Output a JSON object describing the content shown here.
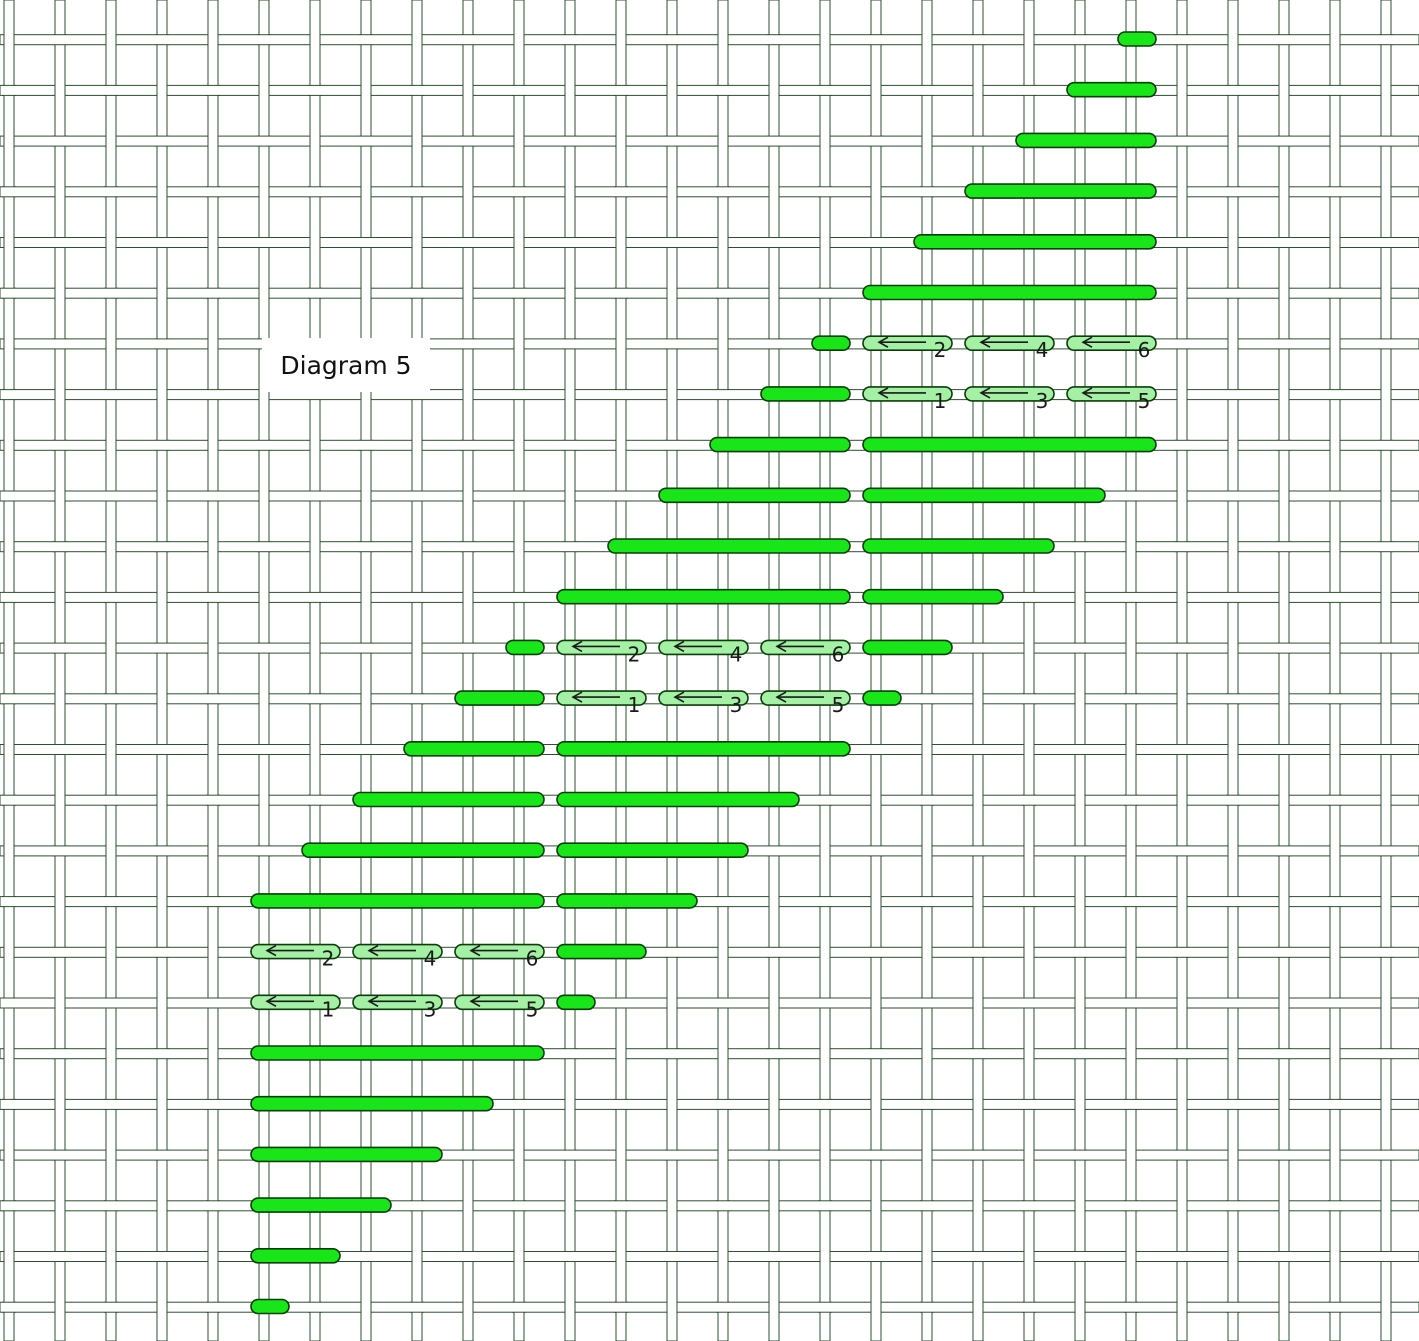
{
  "title": "Diagram 5",
  "colors": {
    "background": "#ffffff",
    "canvas_thread_fill": "#ffffff",
    "canvas_thread_outline": "#2f4f2f",
    "stitch_fill": "#19e619",
    "stitch_outline": "#0b3d0b",
    "numbered_stitch_fill": "#a4f0a4",
    "label_color": "#1a1a1a"
  },
  "grid": {
    "columns": 28,
    "rows": 26,
    "col_start": 14,
    "col_end": 41
  },
  "stitches": [
    {
      "row": 0,
      "from": 35,
      "to": 36
    },
    {
      "row": 1,
      "from": 34,
      "to": 36
    },
    {
      "row": 2,
      "from": 33,
      "to": 36
    },
    {
      "row": 3,
      "from": 32,
      "to": 36
    },
    {
      "row": 4,
      "from": 31,
      "to": 36
    },
    {
      "row": 5,
      "from": 30,
      "to": 36
    },
    {
      "row": 6,
      "from": 29,
      "to": 30
    },
    {
      "row": 7,
      "from": 28,
      "to": 30
    },
    {
      "row": 8,
      "from": 27,
      "to": 30
    },
    {
      "row": 8,
      "from": 30,
      "to": 36
    },
    {
      "row": 9,
      "from": 26,
      "to": 30
    },
    {
      "row": 9,
      "from": 30,
      "to": 35
    },
    {
      "row": 10,
      "from": 25,
      "to": 30
    },
    {
      "row": 10,
      "from": 30,
      "to": 34
    },
    {
      "row": 11,
      "from": 24,
      "to": 30
    },
    {
      "row": 11,
      "from": 30,
      "to": 33
    },
    {
      "row": 12,
      "from": 23,
      "to": 24
    },
    {
      "row": 12,
      "from": 30,
      "to": 32
    },
    {
      "row": 13,
      "from": 22,
      "to": 24
    },
    {
      "row": 13,
      "from": 30,
      "to": 31
    },
    {
      "row": 14,
      "from": 21,
      "to": 24
    },
    {
      "row": 14,
      "from": 24,
      "to": 30
    },
    {
      "row": 15,
      "from": 20,
      "to": 24
    },
    {
      "row": 15,
      "from": 24,
      "to": 29
    },
    {
      "row": 16,
      "from": 19,
      "to": 24
    },
    {
      "row": 16,
      "from": 24,
      "to": 28
    },
    {
      "row": 17,
      "from": 18,
      "to": 24
    },
    {
      "row": 17,
      "from": 24,
      "to": 27
    },
    {
      "row": 18,
      "from": 24,
      "to": 26
    },
    {
      "row": 19,
      "from": 24,
      "to": 25
    },
    {
      "row": 20,
      "from": 18,
      "to": 24
    },
    {
      "row": 21,
      "from": 18,
      "to": 23
    },
    {
      "row": 22,
      "from": 18,
      "to": 22
    },
    {
      "row": 23,
      "from": 18,
      "to": 21
    },
    {
      "row": 24,
      "from": 18,
      "to": 20
    },
    {
      "row": 25,
      "from": 18,
      "to": 19
    }
  ],
  "numbered_stitches": [
    {
      "row": 6,
      "from": 30,
      "to": 32,
      "label": "2"
    },
    {
      "row": 6,
      "from": 32,
      "to": 34,
      "label": "4"
    },
    {
      "row": 6,
      "from": 34,
      "to": 36,
      "label": "6"
    },
    {
      "row": 7,
      "from": 30,
      "to": 32,
      "label": "1"
    },
    {
      "row": 7,
      "from": 32,
      "to": 34,
      "label": "3"
    },
    {
      "row": 7,
      "from": 34,
      "to": 36,
      "label": "5"
    },
    {
      "row": 12,
      "from": 24,
      "to": 26,
      "label": "2"
    },
    {
      "row": 12,
      "from": 26,
      "to": 28,
      "label": "4"
    },
    {
      "row": 12,
      "from": 28,
      "to": 30,
      "label": "6"
    },
    {
      "row": 13,
      "from": 24,
      "to": 26,
      "label": "1"
    },
    {
      "row": 13,
      "from": 26,
      "to": 28,
      "label": "3"
    },
    {
      "row": 13,
      "from": 28,
      "to": 30,
      "label": "5"
    },
    {
      "row": 18,
      "from": 18,
      "to": 20,
      "label": "2"
    },
    {
      "row": 18,
      "from": 20,
      "to": 22,
      "label": "4"
    },
    {
      "row": 18,
      "from": 22,
      "to": 24,
      "label": "6"
    },
    {
      "row": 19,
      "from": 18,
      "to": 20,
      "label": "1"
    },
    {
      "row": 19,
      "from": 20,
      "to": 22,
      "label": "3"
    },
    {
      "row": 19,
      "from": 22,
      "to": 24,
      "label": "5"
    }
  ]
}
